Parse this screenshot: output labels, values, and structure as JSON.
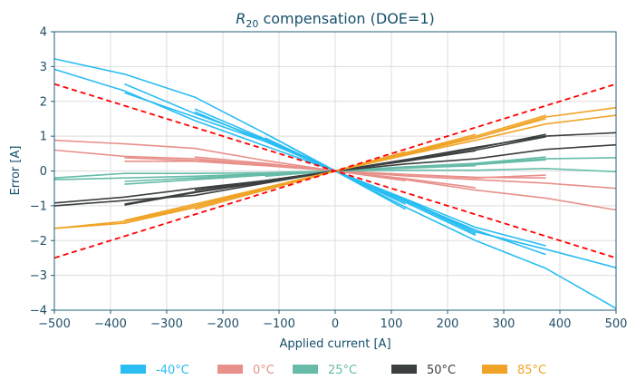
{
  "chart_data": {
    "type": "line",
    "title_symbol": "R",
    "title_subscript": "20",
    "title_rest": " compensation (DOE=1)",
    "xlabel": "Applied current [A]",
    "ylabel": "Error [A]",
    "xlim": [
      -500,
      500
    ],
    "ylim": [
      -4,
      4
    ],
    "xticks": [
      -500,
      -400,
      -300,
      -200,
      -100,
      0,
      100,
      200,
      300,
      400,
      500
    ],
    "yticks": [
      -4,
      -3,
      -2,
      -1,
      0,
      1,
      2,
      3,
      4
    ],
    "xtick_labels": [
      "−500",
      "−400",
      "−300",
      "−200",
      "−100",
      "0",
      "100",
      "200",
      "300",
      "400",
      "500"
    ],
    "ytick_labels": [
      "−4",
      "−3",
      "−2",
      "−1",
      "0",
      "1",
      "2",
      "3",
      "4"
    ],
    "grid": true,
    "legend_position": "bottom",
    "legend": [
      {
        "label": "-40°C",
        "color": "#29bdf2"
      },
      {
        "label": "0°C",
        "color": "#e8908a"
      },
      {
        "label": "25°C",
        "color": "#66bca8"
      },
      {
        "label": "50°C",
        "color": "#3b3f3f"
      },
      {
        "label": "85°C",
        "color": "#f0a427"
      }
    ],
    "limits": [
      {
        "color": "#ff0000",
        "x": [
          -500,
          500
        ],
        "y": [
          2.5,
          -2.5
        ]
      },
      {
        "color": "#ff0000",
        "x": [
          -500,
          500
        ],
        "y": [
          -2.5,
          2.5
        ]
      }
    ],
    "series": [
      {
        "group": "-40°C",
        "color": "#29bdf2",
        "x": [
          -500,
          -375,
          -250,
          -125,
          0,
          125,
          250,
          375,
          500
        ],
        "y": [
          3.22,
          2.78,
          2.12,
          1.08,
          0,
          -1.04,
          -2.0,
          -2.8,
          -3.95
        ]
      },
      {
        "group": "-40°C",
        "color": "#29bdf2",
        "x": [
          -500,
          -375,
          -250,
          -125,
          0,
          125,
          250,
          375,
          500
        ],
        "y": [
          2.92,
          2.3,
          1.45,
          0.72,
          0,
          -0.82,
          -1.75,
          -2.25,
          -2.78
        ]
      },
      {
        "group": "-40°C",
        "color": "#29bdf2",
        "x": [
          -375,
          -250,
          -125,
          0,
          125,
          250,
          375
        ],
        "y": [
          2.5,
          1.65,
          0.9,
          0,
          -0.85,
          -1.7,
          -2.4
        ]
      },
      {
        "group": "-40°C",
        "color": "#29bdf2",
        "x": [
          -375,
          -250,
          -125,
          0,
          125,
          250,
          375
        ],
        "y": [
          2.25,
          1.55,
          0.85,
          0,
          -0.8,
          -1.62,
          -2.15
        ]
      },
      {
        "group": "-40°C",
        "color": "#29bdf2",
        "x": [
          -250,
          -125,
          0,
          125,
          250
        ],
        "y": [
          1.78,
          0.92,
          0,
          -0.9,
          -1.85
        ]
      },
      {
        "group": "-40°C",
        "color": "#29bdf2",
        "x": [
          -250,
          -125,
          0,
          125,
          250
        ],
        "y": [
          1.7,
          0.85,
          0,
          -0.85,
          -1.8
        ]
      },
      {
        "group": "-40°C",
        "color": "#29bdf2",
        "x": [
          -125,
          0,
          125
        ],
        "y": [
          1.08,
          0,
          -1.1
        ]
      },
      {
        "group": "-40°C",
        "color": "#29bdf2",
        "x": [
          -125,
          0,
          125
        ],
        "y": [
          0.95,
          0,
          -0.95
        ]
      },
      {
        "group": "0°C",
        "color": "#e8908a",
        "x": [
          -500,
          -375,
          -250,
          -125,
          0,
          125,
          250,
          375,
          500
        ],
        "y": [
          0.88,
          0.78,
          0.65,
          0.3,
          0,
          -0.25,
          -0.55,
          -0.78,
          -1.12
        ]
      },
      {
        "group": "0°C",
        "color": "#e8908a",
        "x": [
          -500,
          -375,
          -250,
          -125,
          0,
          125,
          250,
          375,
          500
        ],
        "y": [
          0.6,
          0.42,
          0.35,
          0.18,
          0,
          -0.14,
          -0.25,
          -0.35,
          -0.5
        ]
      },
      {
        "group": "0°C",
        "color": "#e8908a",
        "x": [
          -375,
          -250,
          -125,
          0,
          125,
          250,
          375
        ],
        "y": [
          0.28,
          0.28,
          0.15,
          0,
          -0.1,
          -0.18,
          -0.2
        ]
      },
      {
        "group": "0°C",
        "color": "#e8908a",
        "x": [
          -375,
          -250,
          -125,
          0,
          125,
          250,
          375
        ],
        "y": [
          0.38,
          0.3,
          0.2,
          0,
          -0.1,
          -0.2,
          -0.12
        ]
      },
      {
        "group": "0°C",
        "color": "#e8908a",
        "x": [
          -250,
          -125,
          0,
          125,
          250
        ],
        "y": [
          0.4,
          0.22,
          0,
          -0.22,
          -0.48
        ]
      },
      {
        "group": "0°C",
        "color": "#e8908a",
        "x": [
          -125,
          0,
          125
        ],
        "y": [
          0.3,
          0,
          -0.28
        ]
      },
      {
        "group": "25°C",
        "color": "#66bca8",
        "x": [
          -500,
          -375,
          -250,
          -125,
          0,
          125,
          250,
          375,
          500
        ],
        "y": [
          -0.2,
          -0.07,
          -0.07,
          -0.05,
          0,
          0.02,
          0.02,
          0.07,
          -0.02
        ]
      },
      {
        "group": "25°C",
        "color": "#66bca8",
        "x": [
          -500,
          -375,
          -250,
          -125,
          0,
          125,
          250,
          375,
          500
        ],
        "y": [
          -0.25,
          -0.2,
          -0.15,
          -0.08,
          0,
          0.1,
          0.2,
          0.35,
          0.38
        ]
      },
      {
        "group": "25°C",
        "color": "#66bca8",
        "x": [
          -375,
          -250,
          -125,
          0,
          125,
          250,
          375
        ],
        "y": [
          -0.38,
          -0.25,
          -0.12,
          0,
          0.12,
          0.22,
          0.4
        ]
      },
      {
        "group": "25°C",
        "color": "#66bca8",
        "x": [
          -375,
          -250,
          -125,
          0,
          125,
          250,
          375
        ],
        "y": [
          -0.3,
          -0.2,
          -0.1,
          0,
          0.1,
          0.18,
          0.32
        ]
      },
      {
        "group": "25°C",
        "color": "#66bca8",
        "x": [
          -250,
          -125,
          0,
          125,
          250
        ],
        "y": [
          -0.22,
          -0.1,
          0,
          0.08,
          0.15
        ]
      },
      {
        "group": "25°C",
        "color": "#66bca8",
        "x": [
          -125,
          0,
          125
        ],
        "y": [
          -0.15,
          0,
          0.1
        ]
      },
      {
        "group": "50°C",
        "color": "#3b3f3f",
        "x": [
          -500,
          -375,
          -250,
          -125,
          0,
          125,
          250,
          375,
          500
        ],
        "y": [
          -0.92,
          -0.75,
          -0.5,
          -0.28,
          0,
          0.2,
          0.35,
          0.62,
          0.75
        ]
      },
      {
        "group": "50°C",
        "color": "#3b3f3f",
        "x": [
          -500,
          -375,
          -250,
          -125,
          0,
          125,
          250,
          375,
          500
        ],
        "y": [
          -1.0,
          -0.85,
          -0.7,
          -0.35,
          0,
          0.32,
          0.68,
          1.0,
          1.1
        ]
      },
      {
        "group": "50°C",
        "color": "#3b3f3f",
        "x": [
          -375,
          -250,
          -125,
          0,
          125,
          250,
          375
        ],
        "y": [
          -0.98,
          -0.62,
          -0.32,
          0,
          0.32,
          0.65,
          1.05
        ]
      },
      {
        "group": "50°C",
        "color": "#3b3f3f",
        "x": [
          -375,
          -250,
          -125,
          0,
          125,
          250,
          375
        ],
        "y": [
          -0.95,
          -0.6,
          -0.3,
          0,
          0.3,
          0.6,
          0.98
        ]
      },
      {
        "group": "50°C",
        "color": "#3b3f3f",
        "x": [
          -250,
          -125,
          0,
          125,
          250
        ],
        "y": [
          -0.55,
          -0.28,
          0,
          0.28,
          0.58
        ]
      },
      {
        "group": "50°C",
        "color": "#3b3f3f",
        "x": [
          -125,
          0,
          125
        ],
        "y": [
          -0.3,
          0,
          0.32
        ]
      },
      {
        "group": "85°C",
        "color": "#f0a427",
        "x": [
          -500,
          -375,
          -250,
          -125,
          0,
          125,
          250,
          375,
          500
        ],
        "y": [
          -1.65,
          -1.45,
          -1.0,
          -0.5,
          0,
          0.48,
          0.95,
          1.55,
          1.82
        ]
      },
      {
        "group": "85°C",
        "color": "#f0a427",
        "x": [
          -500,
          -375,
          -250,
          -125,
          0,
          125,
          250,
          375,
          500
        ],
        "y": [
          -1.65,
          -1.5,
          -1.05,
          -0.52,
          0,
          0.45,
          0.88,
          1.35,
          1.6
        ]
      },
      {
        "group": "85°C",
        "color": "#f0a427",
        "x": [
          -375,
          -250,
          -125,
          0,
          125,
          250,
          375
        ],
        "y": [
          -1.5,
          -1.0,
          -0.5,
          0,
          0.5,
          1.0,
          1.6
        ]
      },
      {
        "group": "85°C",
        "color": "#f0a427",
        "x": [
          -375,
          -250,
          -125,
          0,
          125,
          250,
          375
        ],
        "y": [
          -1.42,
          -0.95,
          -0.48,
          0,
          0.48,
          0.95,
          1.5
        ]
      },
      {
        "group": "85°C",
        "color": "#f0a427",
        "x": [
          -250,
          -125,
          0,
          125,
          250
        ],
        "y": [
          -1.1,
          -0.55,
          0,
          0.52,
          1.05
        ]
      },
      {
        "group": "85°C",
        "color": "#f0a427",
        "x": [
          -125,
          0,
          125
        ],
        "y": [
          -0.55,
          0,
          0.55
        ]
      }
    ]
  }
}
